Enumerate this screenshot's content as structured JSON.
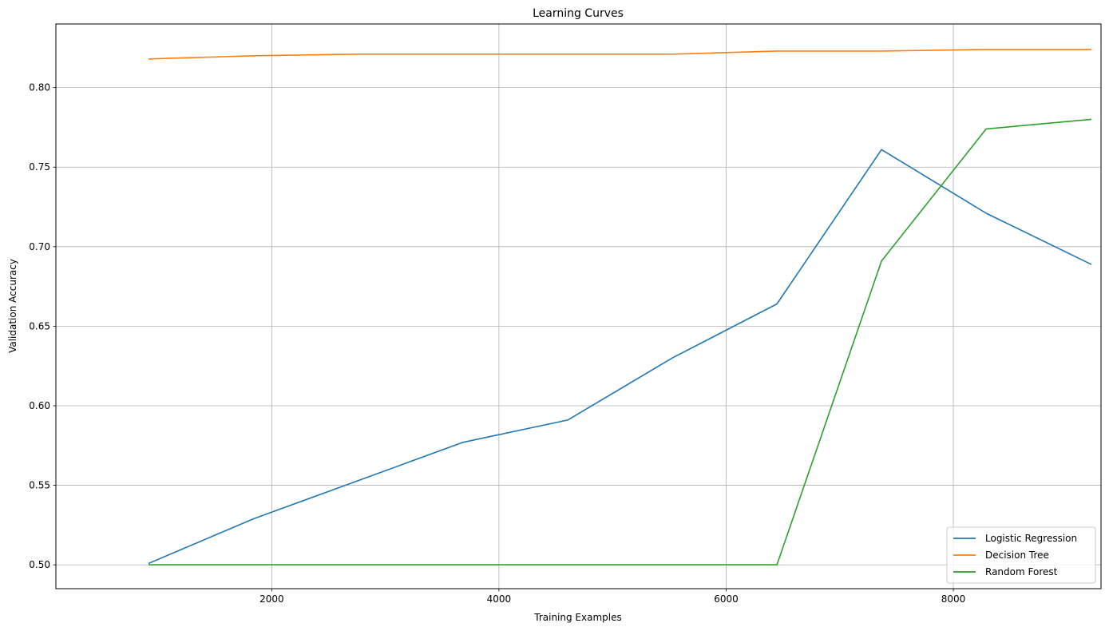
{
  "chart_data": {
    "type": "line",
    "title": "Learning Curves",
    "xlabel": "Training Examples",
    "ylabel": "Validation Accuracy",
    "xlim": [
      100,
      9300
    ],
    "ylim": [
      0.485,
      0.84
    ],
    "xticks": [
      2000,
      4000,
      6000,
      8000
    ],
    "yticks": [
      0.5,
      0.55,
      0.6,
      0.65,
      0.7,
      0.75,
      0.8
    ],
    "xtick_labels": [
      "2000",
      "4000",
      "6000",
      "8000"
    ],
    "ytick_labels": [
      "0.50",
      "0.55",
      "0.60",
      "0.65",
      "0.70",
      "0.75",
      "0.80"
    ],
    "grid": true,
    "legend_position": "bottom-right",
    "x": [
      921,
      1842,
      2763,
      3684,
      4605,
      5526,
      6447,
      7368,
      8289,
      9210
    ],
    "series": [
      {
        "name": "Logistic Regression",
        "color": "#1f77b4",
        "values": [
          0.501,
          0.529,
          0.553,
          0.577,
          0.591,
          0.63,
          0.664,
          0.761,
          0.721,
          0.689
        ]
      },
      {
        "name": "Decision Tree",
        "color": "#ff7f0e",
        "values": [
          0.818,
          0.82,
          0.821,
          0.821,
          0.821,
          0.821,
          0.823,
          0.823,
          0.824,
          0.824
        ]
      },
      {
        "name": "Random Forest",
        "color": "#2ca02c",
        "values": [
          0.5,
          0.5,
          0.5,
          0.5,
          0.5,
          0.5,
          0.5,
          0.691,
          0.774,
          0.78
        ]
      }
    ]
  }
}
